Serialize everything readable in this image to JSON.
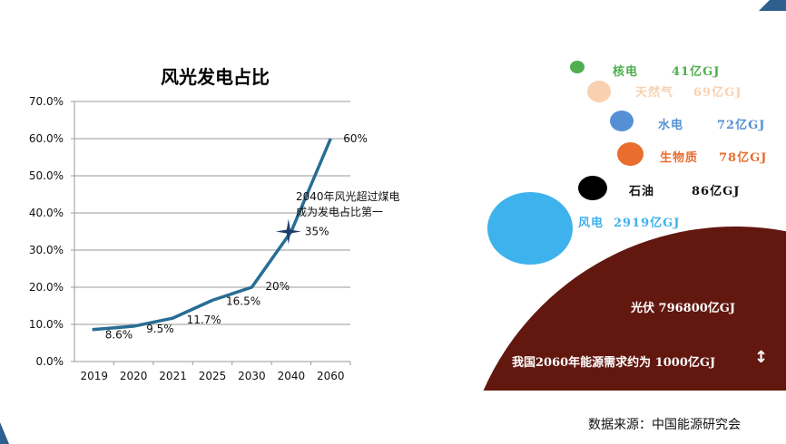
{
  "chart_data": {
    "type": "line",
    "title": "风光发电占比",
    "categories": [
      "2019",
      "2020",
      "2021",
      "2025",
      "2030",
      "2040",
      "2060"
    ],
    "values": [
      8.6,
      9.5,
      11.7,
      16.5,
      20,
      35,
      60
    ],
    "data_labels": [
      "8.6%",
      "9.5%",
      "11.7%",
      "16.5%",
      "20%",
      "35%",
      "60%"
    ],
    "yticks": [
      "0.0%",
      "10.0%",
      "20.0%",
      "30.0%",
      "40.0%",
      "50.0%",
      "60.0%",
      "70.0%"
    ],
    "ylim": [
      0,
      70
    ],
    "grid": true,
    "line_color": "#276d94",
    "annotation": {
      "line1": "2040年风光超过煤电",
      "line2": "成为发电占比第一",
      "marker": "star",
      "category": "2040",
      "value": 35
    }
  },
  "bubbles": [
    {
      "name": "核电",
      "value": "41亿GJ",
      "color": "#4fae4f"
    },
    {
      "name": "天然气",
      "value": "69亿GJ",
      "color": "#f9d1b1"
    },
    {
      "name": "水电",
      "value": "72亿GJ",
      "color": "#5590d5"
    },
    {
      "name": "生物质",
      "value": "78亿GJ",
      "color": "#e86d2e"
    },
    {
      "name": "石油",
      "value": "86亿GJ",
      "color": "#000000"
    },
    {
      "name": "风电",
      "value": "2919亿GJ",
      "color": "#3eb2ec"
    }
  ],
  "solar": {
    "label": "光伏  796800亿GJ",
    "color": "#62170f"
  },
  "demand": {
    "label": "我国2060年能源需求约为  1000亿GJ"
  },
  "source": "数据来源：中国能源研究会"
}
